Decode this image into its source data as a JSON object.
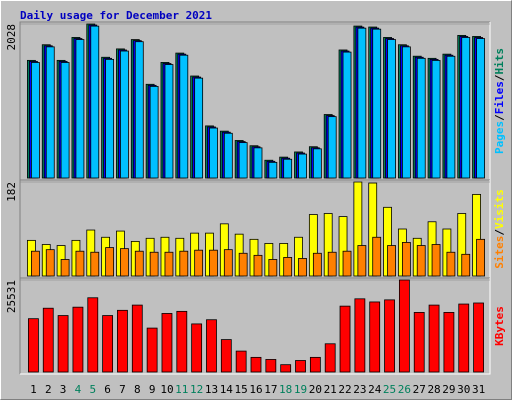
{
  "chart_data": [
    {
      "type": "bar",
      "title": "Daily usage for December 2021",
      "separator": "/",
      "ylim": [
        0,
        2028
      ],
      "yticks": [
        2028
      ],
      "series": [
        {
          "name": "Hits",
          "color": "#00805c",
          "values": [
            1549,
            1755,
            1549,
            1851,
            2028,
            1590,
            1700,
            1823,
            1234,
            1522,
            1645,
            1343,
            686,
            617,
            494,
            425,
            234,
            275,
            343,
            412,
            836,
            1686,
            2001,
            1988,
            1851,
            1755,
            1604,
            1576,
            1631,
            1878,
            1864
          ]
        },
        {
          "name": "Files",
          "color": "#0000ff",
          "values": [
            1535,
            1741,
            1535,
            1837,
            2014,
            1576,
            1686,
            1809,
            1220,
            1508,
            1631,
            1329,
            672,
            603,
            480,
            411,
            220,
            261,
            329,
            398,
            822,
            1672,
            1987,
            1974,
            1837,
            1741,
            1590,
            1562,
            1617,
            1864,
            1850
          ]
        },
        {
          "name": "Pages",
          "color": "#00c0ff",
          "values": [
            1521,
            1727,
            1521,
            1823,
            2000,
            1562,
            1672,
            1795,
            1206,
            1494,
            1617,
            1315,
            658,
            589,
            466,
            397,
            206,
            247,
            315,
            384,
            808,
            1658,
            1973,
            1960,
            1823,
            1727,
            1576,
            1548,
            1603,
            1850,
            1836
          ]
        }
      ]
    },
    {
      "type": "bar",
      "ylim": [
        0,
        182
      ],
      "yticks": [
        182
      ],
      "series": [
        {
          "name": "Visits",
          "color": "#ffff00",
          "values": [
            69,
            61,
            59,
            69,
            89,
            75,
            87,
            67,
            73,
            75,
            73,
            83,
            83,
            101,
            81,
            71,
            63,
            63,
            75,
            119,
            121,
            115,
            182,
            180,
            133,
            91,
            73,
            105,
            91,
            121,
            158
          ]
        },
        {
          "name": "Sites",
          "color": "#ff8000",
          "values": [
            48,
            51,
            32,
            48,
            46,
            55,
            53,
            48,
            46,
            46,
            48,
            50,
            50,
            51,
            44,
            40,
            32,
            36,
            34,
            44,
            46,
            48,
            59,
            75,
            59,
            65,
            59,
            61,
            46,
            42,
            71
          ]
        }
      ]
    },
    {
      "type": "bar",
      "ylim": [
        0,
        25531
      ],
      "yticks": [
        25531
      ],
      "categories": [
        "1",
        "2",
        "3",
        "4",
        "5",
        "6",
        "7",
        "8",
        "9",
        "10",
        "11",
        "12",
        "13",
        "14",
        "15",
        "16",
        "17",
        "18",
        "19",
        "20",
        "21",
        "22",
        "23",
        "24",
        "25",
        "26",
        "27",
        "28",
        "29",
        "30",
        "31"
      ],
      "category_colors": [
        "#000000",
        "#000000",
        "#000000",
        "#00805c",
        "#00805c",
        "#000000",
        "#000000",
        "#000000",
        "#000000",
        "#000000",
        "#00805c",
        "#00805c",
        "#000000",
        "#000000",
        "#000000",
        "#000000",
        "#000000",
        "#00805c",
        "#00805c",
        "#000000",
        "#000000",
        "#000000",
        "#000000",
        "#000000",
        "#00805c",
        "#00805c",
        "#000000",
        "#000000",
        "#000000",
        "#000000",
        "#000000"
      ],
      "series": [
        {
          "name": "KBytes",
          "color": "#ff0000",
          "values": [
            14796,
            17700,
            15667,
            17990,
            20600,
            15667,
            17117,
            18568,
            12185,
            16247,
            16827,
            13346,
            14506,
            8994,
            5803,
            4062,
            3482,
            2031,
            3191,
            4062,
            7833,
            18278,
            20309,
            19439,
            20019,
            25531,
            16537,
            18568,
            16537,
            18858,
            19149
          ]
        }
      ]
    }
  ]
}
